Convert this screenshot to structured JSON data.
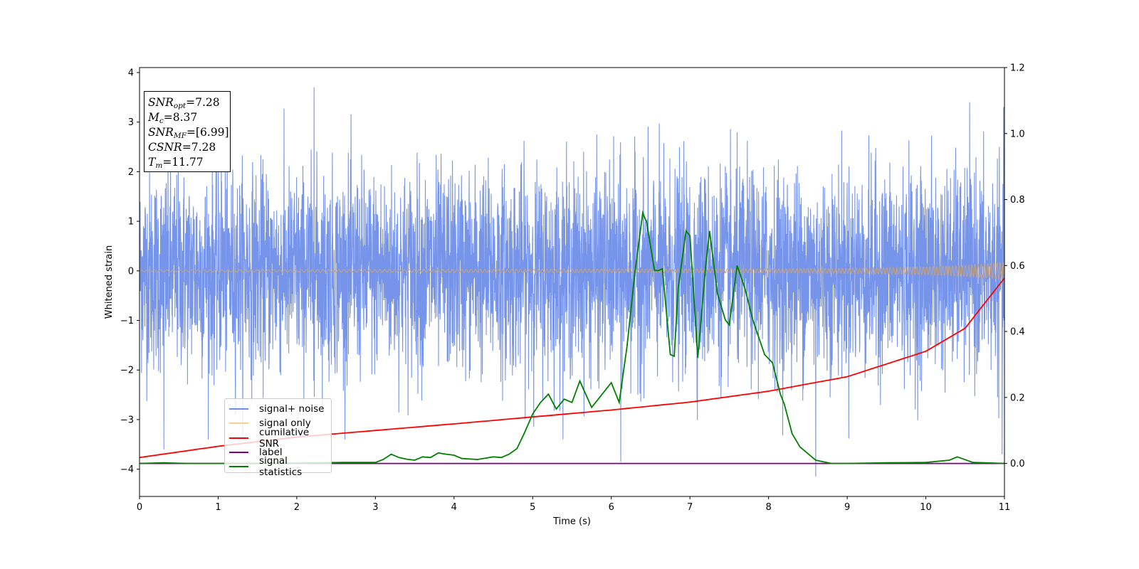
{
  "info_box": {
    "snr_opt": {
      "label": "SNR",
      "sub": "opt",
      "value": "=7.28"
    },
    "mc": {
      "label": "M",
      "sub": "c",
      "value": "=8.37"
    },
    "snr_mf": {
      "label": "SNR",
      "sub": "MF",
      "value": "=[6.99]"
    },
    "csnr": {
      "label": "CSNR",
      "value": "=7.28"
    },
    "tm": {
      "label": "T",
      "sub": "m",
      "value": "=11.77"
    }
  },
  "legend": {
    "items": [
      {
        "label": "signal+ noise",
        "color": "#6f8ee8"
      },
      {
        "label": "signal only",
        "color": "#ffcf8a"
      },
      {
        "label": "cumilative SNR",
        "color": "#ff0000"
      },
      {
        "label": "label",
        "color": "#800080"
      },
      {
        "label": "signal statistics",
        "color": "#008000"
      }
    ]
  },
  "chart_data": {
    "type": "line",
    "xlabel": "Time (s)",
    "ylabel": "Whitened strain",
    "xlim": [
      0,
      11
    ],
    "ylim": [
      -4.55,
      4.1
    ],
    "y2lim": [
      -0.1,
      1.2
    ],
    "xticks": [
      "0",
      "1",
      "2",
      "3",
      "4",
      "5",
      "6",
      "7",
      "8",
      "9",
      "10",
      "11"
    ],
    "yticks": [
      "−4",
      "−3",
      "−2",
      "−1",
      "0",
      "1",
      "2",
      "3",
      "4"
    ],
    "y2ticks": [
      "0.0",
      "0.2",
      "0.4",
      "0.6",
      "0.8",
      "1.0",
      "1.2"
    ],
    "grid": false,
    "legend_position": "lower-left",
    "series": [
      {
        "name": "signal+ noise",
        "axis": "left",
        "color": "#6f8ee8",
        "description": "white noise, amplitude envelope about ±2.5 with spikes to ±3.7 and −4.2",
        "peaks": [
          [
            0.31,
            -3.6
          ],
          [
            1.04,
            3.4
          ],
          [
            2.22,
            3.7
          ],
          [
            6.12,
            -3.85
          ],
          [
            8.6,
            -4.15
          ],
          [
            10.97,
            -3.7
          ]
        ]
      },
      {
        "name": "signal only",
        "axis": "left",
        "color": "#ffcf8a",
        "x": [
          0,
          4,
          8,
          9,
          10,
          10.5,
          11
        ],
        "envelope": [
          0.02,
          0.03,
          0.04,
          0.05,
          0.08,
          0.11,
          0.17
        ]
      },
      {
        "name": "cumilative SNR",
        "axis": "right",
        "color": "#ff0000",
        "x": [
          0,
          1,
          2,
          3,
          4,
          5,
          6,
          7,
          8,
          9,
          10,
          10.5,
          11
        ],
        "y": [
          0.018,
          0.052,
          0.08,
          0.1,
          0.12,
          0.141,
          0.162,
          0.186,
          0.219,
          0.263,
          0.34,
          0.41,
          0.562
        ]
      },
      {
        "name": "label",
        "axis": "right",
        "color": "#800080",
        "x": [
          0,
          11
        ],
        "y": [
          0.0,
          0.0
        ]
      },
      {
        "name": "signal statistics",
        "axis": "right",
        "color": "#008000",
        "x": [
          0,
          0.3,
          0.6,
          1.0,
          1.5,
          2.0,
          2.3,
          2.6,
          3.0,
          3.1,
          3.2,
          3.3,
          3.4,
          3.5,
          3.6,
          3.7,
          3.8,
          3.9,
          4.0,
          4.1,
          4.3,
          4.5,
          4.6,
          4.7,
          4.8,
          4.9,
          5.0,
          5.1,
          5.2,
          5.3,
          5.4,
          5.5,
          5.6,
          5.75,
          5.9,
          6.0,
          6.1,
          6.2,
          6.3,
          6.4,
          6.45,
          6.55,
          6.6,
          6.65,
          6.75,
          6.8,
          6.85,
          6.95,
          7.0,
          7.1,
          7.2,
          7.25,
          7.35,
          7.45,
          7.5,
          7.6,
          7.7,
          7.8,
          7.95,
          8.05,
          8.15,
          8.2,
          8.3,
          8.4,
          8.6,
          8.8,
          9.0,
          9.5,
          10.0,
          10.3,
          10.4,
          10.6,
          11.0
        ],
        "y": [
          0.0,
          0.002,
          0.0,
          0.0,
          0.0,
          0.001,
          0.002,
          0.003,
          0.003,
          0.012,
          0.028,
          0.018,
          0.013,
          0.01,
          0.02,
          0.018,
          0.032,
          0.028,
          0.025,
          0.015,
          0.012,
          0.02,
          0.018,
          0.028,
          0.045,
          0.095,
          0.15,
          0.185,
          0.21,
          0.165,
          0.195,
          0.185,
          0.25,
          0.17,
          0.215,
          0.245,
          0.185,
          0.355,
          0.58,
          0.76,
          0.73,
          0.585,
          0.585,
          0.59,
          0.33,
          0.325,
          0.53,
          0.705,
          0.69,
          0.32,
          0.6,
          0.705,
          0.515,
          0.435,
          0.42,
          0.6,
          0.53,
          0.435,
          0.33,
          0.305,
          0.21,
          0.18,
          0.09,
          0.05,
          0.01,
          0.0,
          0.0,
          0.002,
          0.003,
          0.01,
          0.02,
          0.003,
          0.0
        ]
      }
    ]
  }
}
